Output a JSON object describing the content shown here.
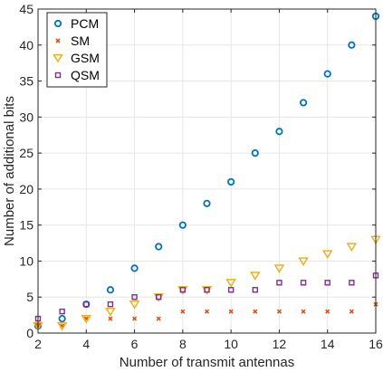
{
  "chart_data": {
    "type": "scatter",
    "title": "",
    "xlabel": "Number of transmit antennas",
    "ylabel": "Number of additional bits",
    "xlim": [
      2,
      16
    ],
    "ylim": [
      0,
      45
    ],
    "xticks": [
      2,
      4,
      6,
      8,
      10,
      12,
      14,
      16
    ],
    "yticks": [
      0,
      5,
      10,
      15,
      20,
      25,
      30,
      35,
      40,
      45
    ],
    "grid": true,
    "legend_position": "top-left",
    "x": [
      2,
      3,
      4,
      5,
      6,
      7,
      8,
      9,
      10,
      11,
      12,
      13,
      14,
      15,
      16
    ],
    "series": [
      {
        "name": "PCM",
        "marker": "circle",
        "color": "#0072BD",
        "values": [
          1,
          2,
          4,
          6,
          9,
          12,
          15,
          18,
          21,
          25,
          28,
          32,
          36,
          40,
          44
        ]
      },
      {
        "name": "SM",
        "marker": "x",
        "color": "#D95319",
        "values": [
          1,
          1,
          2,
          2,
          2,
          2,
          3,
          3,
          3,
          3,
          3,
          3,
          3,
          3,
          4
        ]
      },
      {
        "name": "GSM",
        "marker": "triangle-down",
        "color": "#EDB120",
        "values": [
          1,
          1,
          2,
          3,
          4,
          5,
          6,
          6,
          7,
          8,
          9,
          10,
          11,
          12,
          13
        ]
      },
      {
        "name": "QSM",
        "marker": "square",
        "color": "#7E2F8E",
        "values": [
          2,
          3,
          4,
          4,
          5,
          5,
          6,
          6,
          6,
          6,
          7,
          7,
          7,
          7,
          8
        ]
      }
    ]
  }
}
